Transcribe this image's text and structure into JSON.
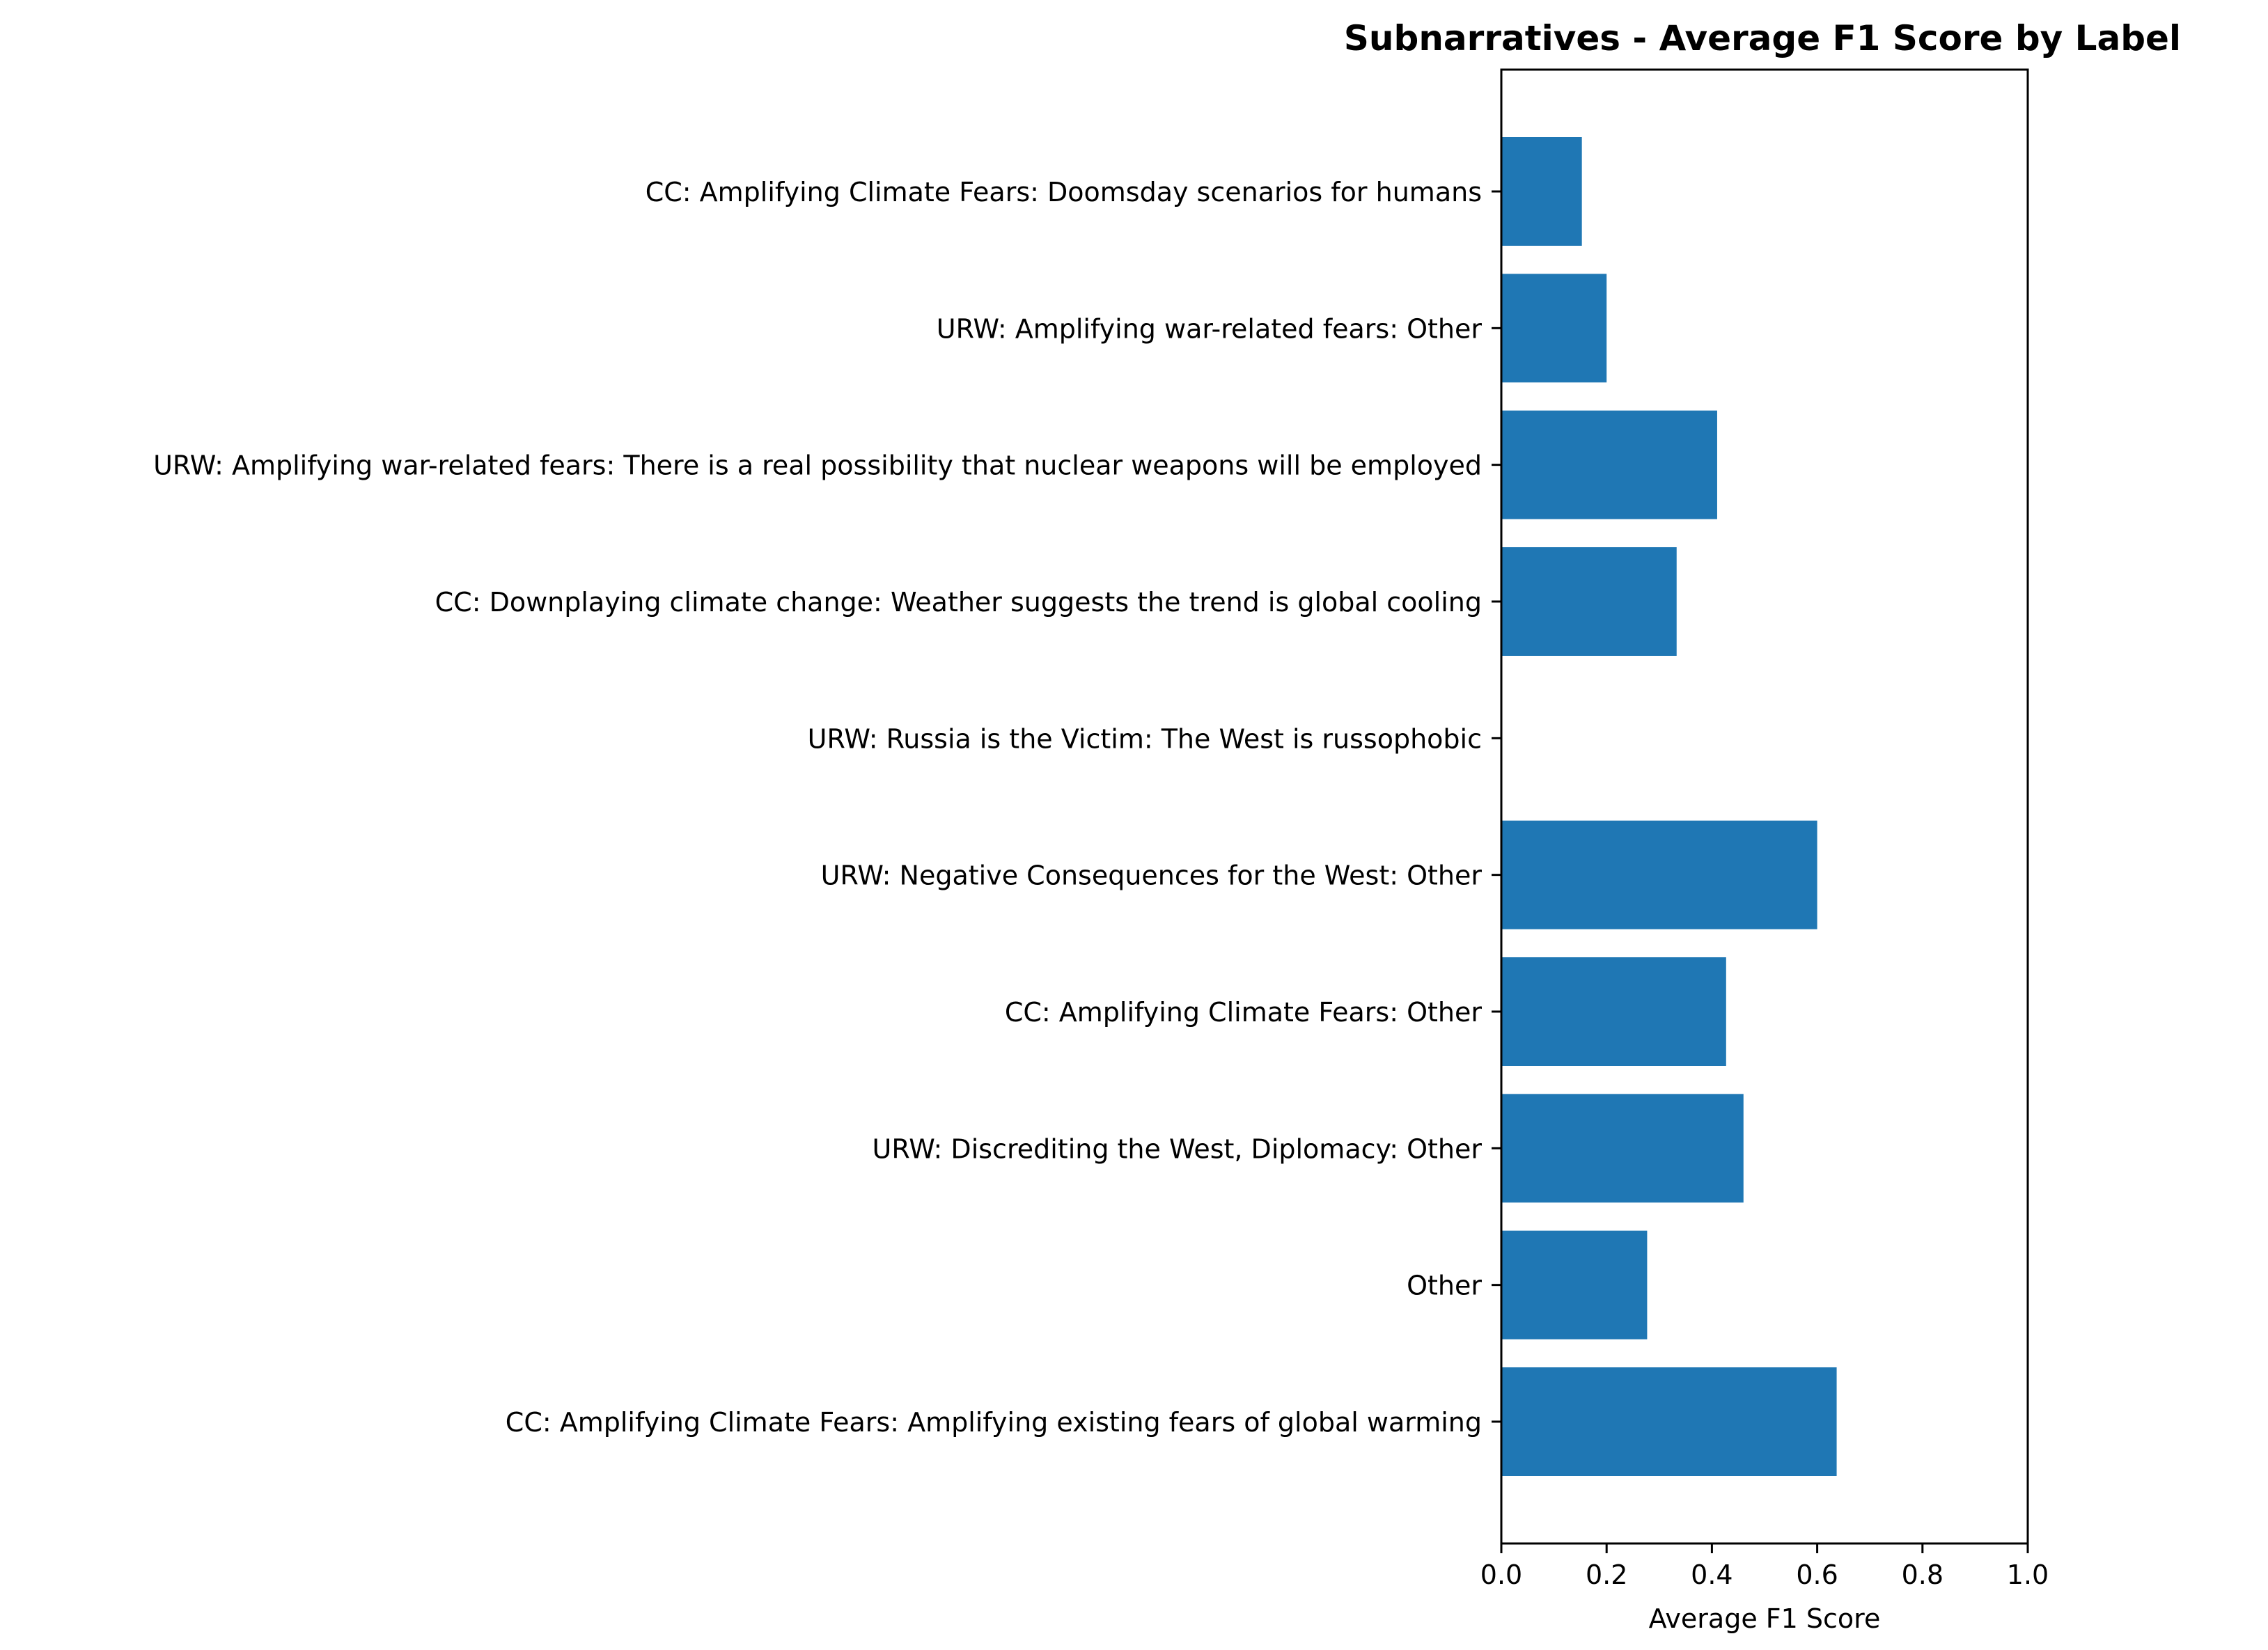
{
  "chart_data": {
    "type": "bar",
    "orientation": "horizontal",
    "title": "Subnarratives - Average F1 Score by Label",
    "xlabel": "Average F1 Score",
    "ylabel": "",
    "xlim": [
      0.0,
      1.0
    ],
    "xticks": [
      "0.0",
      "0.2",
      "0.4",
      "0.6",
      "0.8",
      "1.0"
    ],
    "grid": false,
    "legend": "none",
    "color": "#1f77b4",
    "categories": [
      "CC: Amplifying Climate Fears: Amplifying existing fears of global warming",
      "Other",
      "URW: Discrediting the West, Diplomacy: Other",
      "CC: Amplifying Climate Fears: Other",
      "URW: Negative Consequences for the West: Other",
      "URW: Russia is the Victim: The West is russophobic",
      "CC: Downplaying climate change: Weather suggests the trend is global cooling",
      "URW: Amplifying war-related fears: There is a real possibility that nuclear weapons will be employed",
      "URW: Amplifying war-related fears: Other",
      "CC: Amplifying Climate Fears: Doomsday scenarios for humans"
    ],
    "values": [
      0.637,
      0.277,
      0.46,
      0.427,
      0.6,
      0.0,
      0.333,
      0.41,
      0.2,
      0.153
    ]
  }
}
